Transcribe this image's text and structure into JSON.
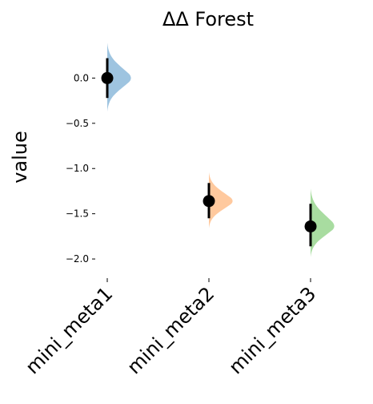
{
  "chart_data": {
    "type": "forest",
    "title": "ΔΔ Forest",
    "xlabel": "",
    "ylabel": "value",
    "ylim": [
      -2.15,
      0.42
    ],
    "yticks": [
      0.0,
      -0.5,
      -1.0,
      -1.5,
      -2.0
    ],
    "ytick_labels": [
      "0.0",
      "−0.5",
      "−1.0",
      "−1.5",
      "−2.0"
    ],
    "grid": false,
    "categories": [
      "mini_meta1",
      "mini_meta2",
      "mini_meta3"
    ],
    "series": [
      {
        "category": "mini_meta1",
        "estimate": 0.0,
        "ci_low": -0.22,
        "ci_high": 0.22,
        "dist_low": -0.37,
        "dist_high": 0.39,
        "color": "#9ec4e0"
      },
      {
        "category": "mini_meta2",
        "estimate": -1.36,
        "ci_low": -1.55,
        "ci_high": -1.16,
        "dist_low": -1.66,
        "dist_high": -1.04,
        "color": "#ffc99e"
      },
      {
        "category": "mini_meta3",
        "estimate": -1.64,
        "ci_low": -1.86,
        "ci_high": -1.39,
        "dist_low": -1.98,
        "dist_high": -1.22,
        "color": "#a8dca0"
      }
    ]
  }
}
